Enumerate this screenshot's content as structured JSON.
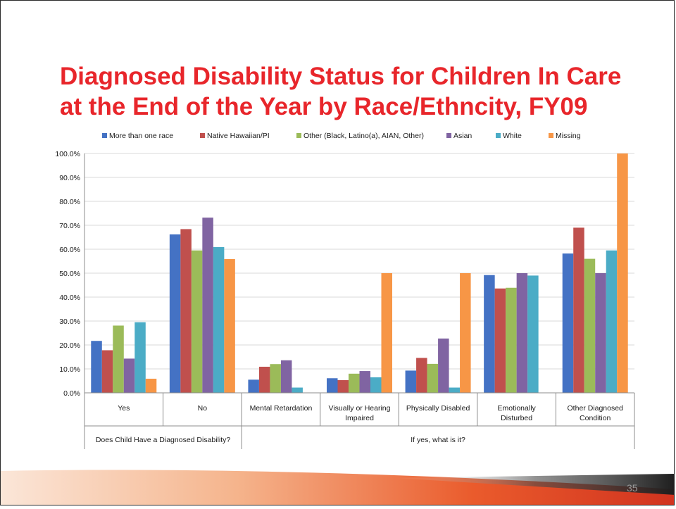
{
  "slide": {
    "title": "Diagnosed Disability Status for Children In Care at the End of the Year by Race/Ethncity, FY09",
    "page_number": "35"
  },
  "colors": {
    "title": "#e8262b",
    "series": [
      "#4472c4",
      "#c0504d",
      "#9bbb59",
      "#8064a2",
      "#4bacc6",
      "#f79646"
    ],
    "gridline": "#d9d9d9",
    "axis": "#8c8c8c"
  },
  "chart_data": {
    "type": "bar",
    "title": "",
    "xlabel": "",
    "ylabel": "",
    "ylim": [
      0,
      100
    ],
    "y_tick_labels": [
      "0.0%",
      "10.0%",
      "20.0%",
      "30.0%",
      "40.0%",
      "50.0%",
      "60.0%",
      "70.0%",
      "80.0%",
      "90.0%",
      "100.0%"
    ],
    "grid": true,
    "legend_position": "top",
    "categories": [
      "Yes",
      "No",
      "Mental Retardation",
      "Visually or Hearing Impaired",
      "Physically Disabled",
      "Emotionally Disturbed",
      "Other Diagnosed Condition"
    ],
    "category_label_lines": [
      [
        "Yes"
      ],
      [
        "No"
      ],
      [
        "Mental Retardation"
      ],
      [
        "Visually or Hearing",
        "Impaired"
      ],
      [
        "Physically Disabled"
      ],
      [
        "Emotionally",
        "Disturbed"
      ],
      [
        "Other Diagnosed",
        "Condition"
      ]
    ],
    "groups": [
      {
        "label": "Does Child Have a Diagnosed Disability?",
        "start": 0,
        "end": 1
      },
      {
        "label": "If yes, what is it?",
        "start": 2,
        "end": 6
      }
    ],
    "series": [
      {
        "name": "More than one race",
        "values": [
          21.7,
          66.2,
          5.5,
          6.1,
          9.3,
          49.2,
          58.2
        ]
      },
      {
        "name": "Native Hawaiian/PI",
        "values": [
          17.8,
          68.4,
          10.9,
          5.3,
          14.6,
          43.6,
          69.0
        ]
      },
      {
        "name": "Other (Black, Latino(a), AIAN, Other)",
        "values": [
          28.1,
          59.5,
          12.0,
          8.0,
          12.1,
          43.9,
          56.0
        ]
      },
      {
        "name": "Asian",
        "values": [
          14.3,
          73.2,
          13.6,
          9.1,
          22.7,
          50.0,
          50.0
        ]
      },
      {
        "name": "White",
        "values": [
          29.5,
          60.9,
          2.2,
          6.5,
          2.2,
          49.0,
          59.5
        ]
      },
      {
        "name": "Missing",
        "values": [
          5.9,
          55.9,
          0,
          50.0,
          50.0,
          0,
          100.0
        ]
      }
    ]
  }
}
